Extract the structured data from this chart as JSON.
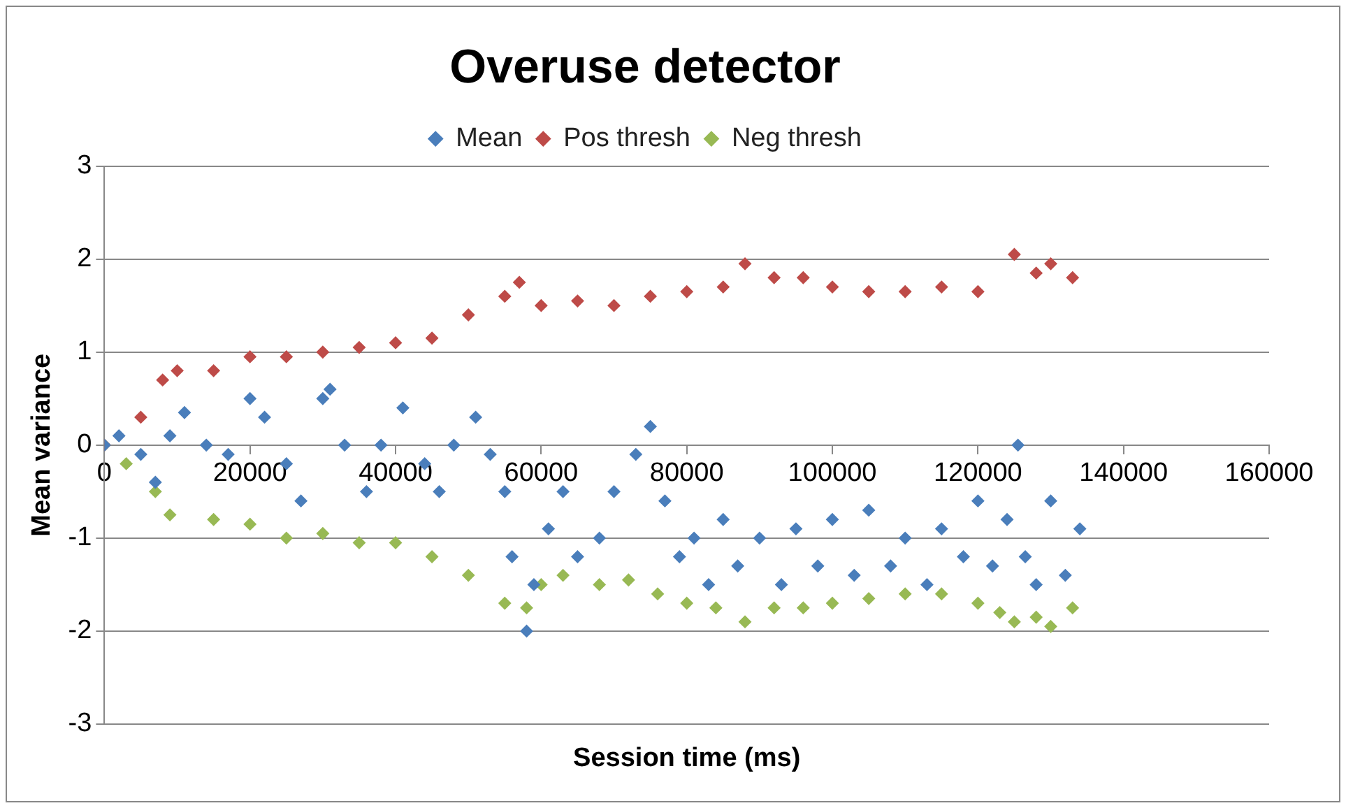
{
  "chart_data": {
    "type": "scatter",
    "title": "Overuse detector",
    "xlabel": "Session time (ms)",
    "ylabel": "Mean variance",
    "xlim": [
      0,
      160000
    ],
    "xticks": [
      0,
      20000,
      40000,
      60000,
      80000,
      100000,
      120000,
      140000,
      160000
    ],
    "ylim": [
      -3,
      3
    ],
    "yticks": [
      -3,
      -2,
      -1,
      0,
      1,
      2,
      3
    ],
    "grid": "y",
    "legend": "top",
    "marker": "diamond",
    "series": [
      {
        "name": "Mean",
        "color": "#4a7ebb",
        "x": [
          0,
          2000,
          5000,
          7000,
          9000,
          11000,
          14000,
          17000,
          20000,
          22000,
          25000,
          27000,
          30000,
          31000,
          33000,
          36000,
          38000,
          41000,
          44000,
          46000,
          48000,
          51000,
          53000,
          55000,
          56000,
          58000,
          59000,
          61000,
          63000,
          65000,
          68000,
          70000,
          73000,
          75000,
          77000,
          79000,
          81000,
          83000,
          85000,
          87000,
          90000,
          93000,
          95000,
          98000,
          100000,
          103000,
          105000,
          108000,
          110000,
          113000,
          115000,
          118000,
          120000,
          122000,
          124000,
          125500,
          126500,
          128000,
          130000,
          132000,
          134000
        ],
        "values": [
          0,
          0.1,
          -0.1,
          -0.4,
          0.1,
          0.35,
          0,
          -0.1,
          0.5,
          0.3,
          -0.2,
          -0.6,
          0.5,
          0.6,
          0,
          -0.5,
          0,
          0.4,
          -0.2,
          -0.5,
          0,
          0.3,
          -0.1,
          -0.5,
          -1.2,
          -2.0,
          -1.5,
          -0.9,
          -0.5,
          -1.2,
          -1.0,
          -0.5,
          -0.1,
          0.2,
          -0.6,
          -1.2,
          -1.0,
          -1.5,
          -0.8,
          -1.3,
          -1.0,
          -1.5,
          -0.9,
          -1.3,
          -0.8,
          -1.4,
          -0.7,
          -1.3,
          -1.0,
          -1.5,
          -0.9,
          -1.2,
          -0.6,
          -1.3,
          -0.8,
          0.0,
          -1.2,
          -1.5,
          -0.6,
          -1.4,
          -0.9
        ]
      },
      {
        "name": "Pos thresh",
        "color": "#be4b48",
        "x": [
          0,
          5000,
          8000,
          10000,
          15000,
          20000,
          25000,
          30000,
          35000,
          40000,
          45000,
          50000,
          55000,
          57000,
          60000,
          65000,
          70000,
          75000,
          80000,
          85000,
          88000,
          92000,
          96000,
          100000,
          105000,
          110000,
          115000,
          120000,
          125000,
          128000,
          130000,
          133000
        ],
        "values": [
          0,
          0.3,
          0.7,
          0.8,
          0.8,
          0.95,
          0.95,
          1.0,
          1.05,
          1.1,
          1.15,
          1.4,
          1.6,
          1.75,
          1.5,
          1.55,
          1.5,
          1.6,
          1.65,
          1.7,
          1.95,
          1.8,
          1.8,
          1.7,
          1.65,
          1.65,
          1.7,
          1.65,
          2.05,
          1.85,
          1.95,
          1.8
        ]
      },
      {
        "name": "Neg thresh",
        "color": "#98b954",
        "x": [
          0,
          3000,
          7000,
          9000,
          15000,
          20000,
          25000,
          30000,
          35000,
          40000,
          45000,
          50000,
          55000,
          58000,
          60000,
          63000,
          68000,
          72000,
          76000,
          80000,
          84000,
          88000,
          92000,
          96000,
          100000,
          105000,
          110000,
          115000,
          120000,
          123000,
          125000,
          128000,
          130000,
          133000
        ],
        "values": [
          0,
          -0.2,
          -0.5,
          -0.75,
          -0.8,
          -0.85,
          -1.0,
          -0.95,
          -1.05,
          -1.05,
          -1.2,
          -1.4,
          -1.7,
          -1.75,
          -1.5,
          -1.4,
          -1.5,
          -1.45,
          -1.6,
          -1.7,
          -1.75,
          -1.9,
          -1.75,
          -1.75,
          -1.7,
          -1.65,
          -1.6,
          -1.6,
          -1.7,
          -1.8,
          -1.9,
          -1.85,
          -1.95,
          -1.75
        ]
      }
    ]
  }
}
